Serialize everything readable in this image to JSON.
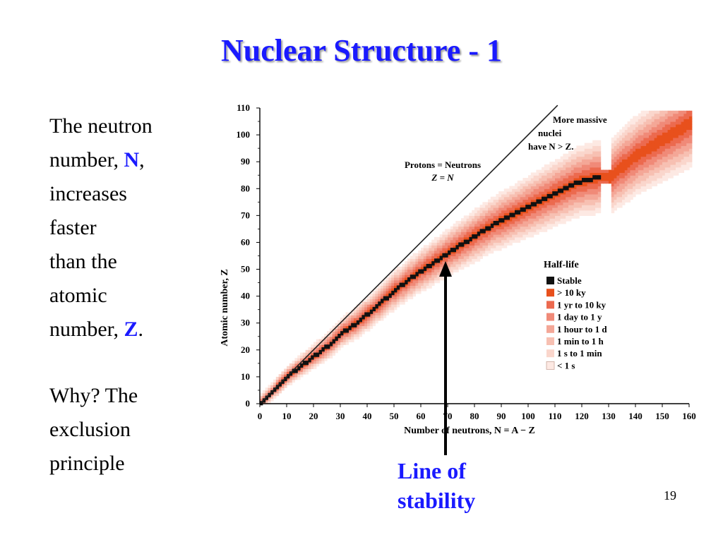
{
  "slide": {
    "title": "Nuclear Structure  - 1",
    "page_number": "19"
  },
  "body": {
    "line1": "The neutron",
    "line2_pre": "number, ",
    "line2_hl": "N",
    "line2_post": ",",
    "line3": "increases",
    "line4": "faster",
    "line5": "than the",
    "line6": "atomic",
    "line7_pre": "number, ",
    "line7_hl": "Z",
    "line7_post": ".",
    "line8": "Why? The",
    "line9": "exclusion",
    "line10": "principle"
  },
  "callout": {
    "line1": "Line of",
    "line2": "stability"
  },
  "colors": {
    "title": "#1a1aff",
    "stable": "#111111",
    "gt_10ky": "#e8501c",
    "yr_10ky": "#ec6a4f",
    "day_1y": "#f08a78",
    "hour_1d": "#f4a797",
    "min_1h": "#f7c0b2",
    "s_1min": "#fad6cc",
    "lt_1s": "#fde9e3"
  },
  "chart_data": {
    "type": "heatmap",
    "xlabel": "Number of neutrons, N = A − Z",
    "ylabel": "Atomic number, Z",
    "xlim": [
      0,
      160
    ],
    "ylim": [
      0,
      110
    ],
    "xticks": [
      "0",
      "10",
      "20",
      "30",
      "40",
      "50",
      "60",
      "70",
      "80",
      "90",
      "100",
      "110",
      "120",
      "130",
      "140",
      "150",
      "160"
    ],
    "yticks": [
      "0",
      "10",
      "20",
      "30",
      "40",
      "50",
      "60",
      "70",
      "80",
      "90",
      "100",
      "110"
    ],
    "reference_line": {
      "label1": "Protons = Neutrons",
      "label2": "Z = N",
      "from": [
        0,
        0
      ],
      "to": [
        111,
        111
      ]
    },
    "massive_note": {
      "line1": "More massive",
      "line2": "nuclei",
      "line3": "have N  > Z."
    },
    "stability_line_N": [
      0,
      2,
      4,
      6,
      8,
      10,
      14,
      18,
      22,
      26,
      30,
      36,
      42,
      50,
      58,
      64,
      70,
      78,
      86,
      94,
      102,
      110,
      118,
      126
    ],
    "stability_line_Z": [
      0,
      2,
      4,
      6,
      8,
      10,
      13,
      16,
      19,
      22,
      26,
      30,
      35,
      42,
      48,
      52,
      56,
      61,
      66,
      70,
      74,
      78,
      82,
      84
    ],
    "heavy_group": {
      "N": [
        130,
        140,
        150,
        160
      ],
      "Z": [
        84,
        92,
        98,
        104
      ]
    },
    "legend": {
      "title": "Half-life",
      "position": "center-right",
      "entries": [
        "Stable",
        "> 10 ky",
        "1 yr to 10 ky",
        "1 day to 1 y",
        "1 hour to 1 d",
        "1 min to 1 h",
        "1 s to 1 min",
        "< 1 s"
      ]
    },
    "grid": false
  }
}
